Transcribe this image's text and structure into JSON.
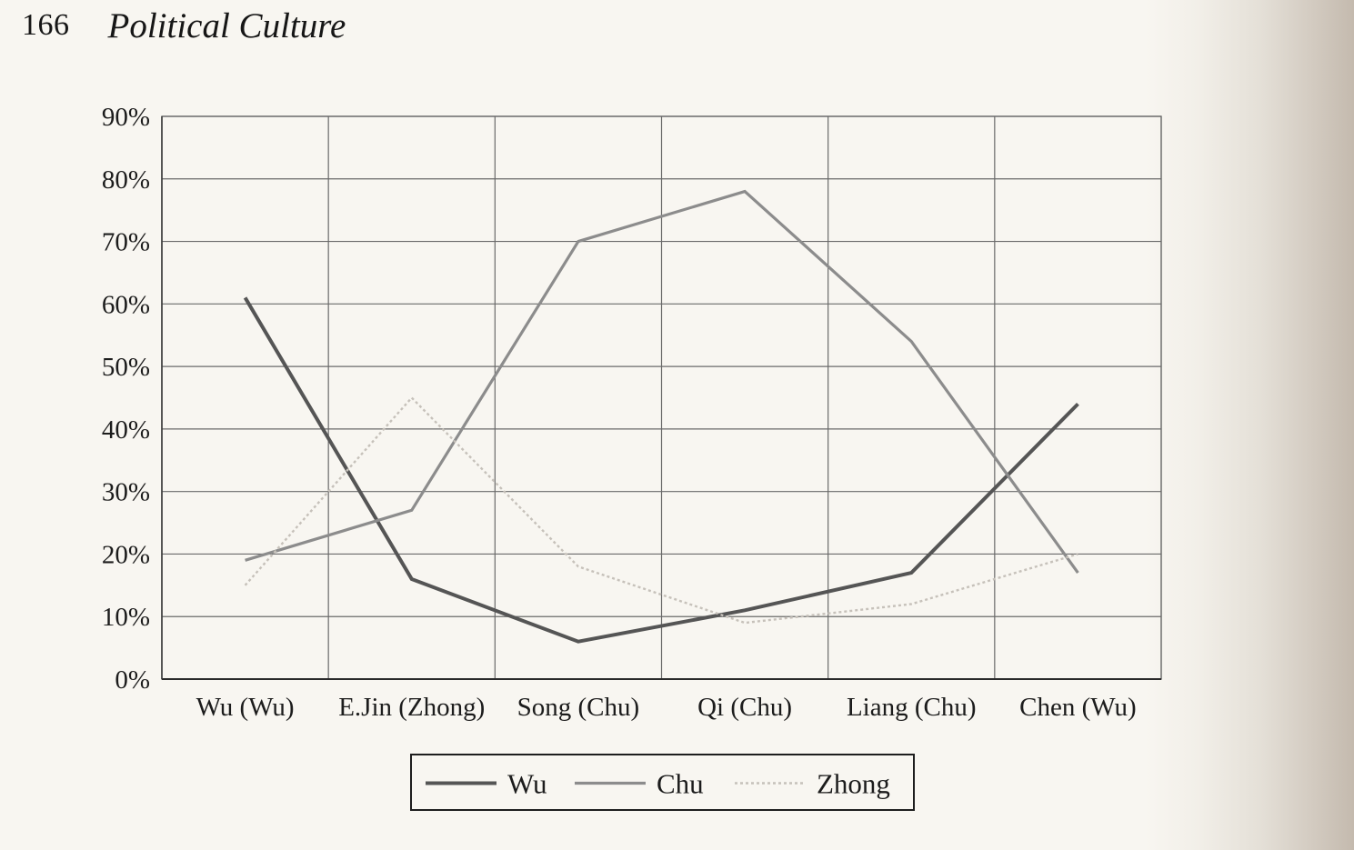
{
  "page": {
    "number": "166",
    "title": "Political Culture"
  },
  "chart_data": {
    "type": "line",
    "title": "",
    "xlabel": "",
    "ylabel": "",
    "categories": [
      "Wu (Wu)",
      "E.Jin (Zhong)",
      "Song (Chu)",
      "Qi (Chu)",
      "Liang (Chu)",
      "Chen (Wu)"
    ],
    "yticks": [
      "0%",
      "10%",
      "20%",
      "30%",
      "40%",
      "50%",
      "60%",
      "70%",
      "80%",
      "90%"
    ],
    "ylim": [
      0,
      90
    ],
    "grid": true,
    "legend_position": "bottom",
    "series": [
      {
        "name": "Wu",
        "values": [
          61,
          16,
          6,
          11,
          17,
          44
        ],
        "color": "#555555",
        "style": "solid-thick"
      },
      {
        "name": "Chu",
        "values": [
          19,
          27,
          70,
          78,
          54,
          17
        ],
        "color": "#8c8c8c",
        "style": "solid"
      },
      {
        "name": "Zhong",
        "values": [
          15,
          45,
          18,
          9,
          12,
          20
        ],
        "color": "#c6c1ba",
        "style": "dotted"
      }
    ]
  }
}
